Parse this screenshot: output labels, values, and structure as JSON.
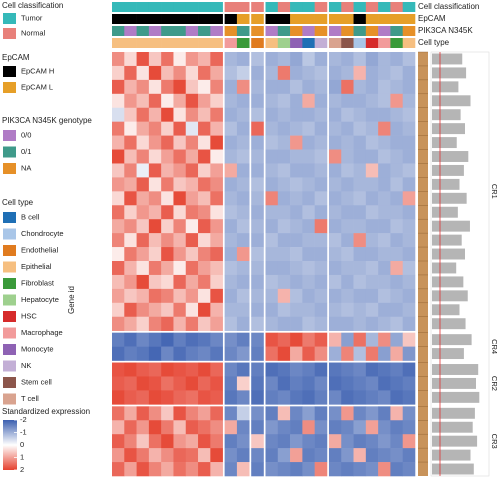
{
  "chart_data": {
    "type": "heatmap",
    "y_label": "Gene id",
    "colorbar": {
      "title": "Standardized expression",
      "lim": [
        -2,
        2
      ],
      "ticks": [
        -2,
        -1,
        0,
        1,
        2
      ],
      "colors": [
        "#3b5fb0",
        "#ffffff",
        "#e5412f"
      ]
    },
    "column_annotations": [
      {
        "label": "Cell classification",
        "legend_title": "Cell classification",
        "levels": [
          {
            "name": "Tumor",
            "color": "#35b9b9"
          },
          {
            "name": "Normal",
            "color": "#e8807a"
          }
        ],
        "values": [
          "Tumor",
          "Tumor",
          "Tumor",
          "Tumor",
          "Tumor",
          "Tumor",
          "Tumor",
          "Tumor",
          "Tumor",
          "Normal",
          "Normal",
          "Normal",
          "Tumor",
          "Normal",
          "Tumor",
          "Tumor",
          "Normal",
          "Tumor",
          "Normal",
          "Tumor",
          "Normal",
          "Tumor",
          "Normal",
          "Tumor"
        ]
      },
      {
        "label": "EpCAM",
        "legend_title": "EpCAM",
        "levels": [
          {
            "name": "EpCAM H",
            "color": "#000000"
          },
          {
            "name": "EpCAM L",
            "color": "#e69f28"
          }
        ],
        "values": [
          "EpCAM H",
          "EpCAM H",
          "EpCAM H",
          "EpCAM H",
          "EpCAM H",
          "EpCAM H",
          "EpCAM H",
          "EpCAM H",
          "EpCAM H",
          "EpCAM H",
          "EpCAM L",
          "EpCAM L",
          "EpCAM H",
          "EpCAM H",
          "EpCAM L",
          "EpCAM L",
          "EpCAM L",
          "EpCAM L",
          "EpCAM L",
          "EpCAM H",
          "EpCAM L",
          "EpCAM L",
          "EpCAM L",
          "EpCAM L"
        ]
      },
      {
        "label": "PIK3CA N345K",
        "legend_title": "PIK3CA N345K genotype",
        "levels": [
          {
            "name": "0/0",
            "color": "#b07cc6"
          },
          {
            "name": "0/1",
            "color": "#3f9a8a"
          },
          {
            "name": "NA",
            "color": "#e69028"
          }
        ],
        "values": [
          "0/1",
          "0/0",
          "0/1",
          "0/0",
          "0/1",
          "0/1",
          "0/0",
          "0/1",
          "0/0",
          "NA",
          "0/1",
          "NA",
          "0/0",
          "0/1",
          "NA",
          "0/0",
          "NA",
          "0/0",
          "NA",
          "0/1",
          "NA",
          "0/0",
          "0/1",
          "NA"
        ]
      },
      {
        "label": "Cell type",
        "legend_title": "Cell type",
        "levels": [
          {
            "name": "B cell",
            "color": "#1f6fb5"
          },
          {
            "name": "Chondrocyte",
            "color": "#a9c6e8"
          },
          {
            "name": "Endothelial",
            "color": "#e07b1f"
          },
          {
            "name": "Epithelial",
            "color": "#f6bf80"
          },
          {
            "name": "Fibroblast",
            "color": "#3a9a3a"
          },
          {
            "name": "Hepatocyte",
            "color": "#9ed08e"
          },
          {
            "name": "HSC",
            "color": "#d62b2b"
          },
          {
            "name": "Macrophage",
            "color": "#f29b9b"
          },
          {
            "name": "Monocyte",
            "color": "#8e62b4"
          },
          {
            "name": "NK",
            "color": "#c3afd6"
          },
          {
            "name": "Stem cell",
            "color": "#8c564b"
          },
          {
            "name": "T cell",
            "color": "#d9a38f"
          }
        ],
        "values": [
          "Epithelial",
          "Epithelial",
          "Epithelial",
          "Epithelial",
          "Epithelial",
          "Epithelial",
          "Epithelial",
          "Epithelial",
          "Epithelial",
          "Macrophage",
          "Fibroblast",
          "Endothelial",
          "Epithelial",
          "Hepatocyte",
          "Monocyte",
          "B cell",
          "NK",
          "T cell",
          "Stem cell",
          "Chondrocyte",
          "HSC",
          "Macrophage",
          "Fibroblast",
          "Epithelial"
        ]
      }
    ],
    "row_clusters": [
      {
        "name": "CR1",
        "rows": [
          [
            1.2,
            0.4,
            1.8,
            0.6,
            1.5,
            0.2,
            1.1,
            0.8,
            1.6,
            -0.9,
            -1.0,
            -0.8,
            -1.0,
            -0.9,
            -1.1,
            -0.7,
            -1.0,
            -0.9,
            -1.0,
            -0.8,
            -1.1,
            -0.9,
            -1.0,
            -0.8
          ],
          [
            0.5,
            1.6,
            0.3,
            1.9,
            0.7,
            1.2,
            0.4,
            1.5,
            0.9,
            -0.8,
            -0.6,
            -1.0,
            -0.9,
            1.4,
            -1.0,
            -0.9,
            -0.8,
            -1.0,
            -0.9,
            0.8,
            -1.0,
            -0.9,
            -0.8,
            -1.0
          ],
          [
            1.7,
            0.8,
            1.2,
            0.3,
            1.4,
            1.9,
            0.6,
            0.2,
            1.3,
            -1.0,
            1.2,
            -0.9,
            -1.0,
            -1.0,
            -0.8,
            -1.0,
            -0.9,
            -1.1,
            1.5,
            -0.9,
            -1.0,
            -0.8,
            -0.9,
            -1.0
          ],
          [
            0.3,
            1.1,
            0.7,
            1.6,
            0.2,
            0.9,
            1.8,
            1.0,
            0.5,
            -0.9,
            -1.0,
            -1.0,
            -0.9,
            -0.8,
            -1.0,
            0.9,
            -1.0,
            -0.9,
            -1.0,
            -1.0,
            -0.9,
            -0.8,
            1.1,
            -0.9
          ],
          [
            -0.4,
            0.6,
            1.5,
            0.8,
            1.9,
            0.3,
            1.2,
            0.7,
            1.4,
            -1.0,
            -0.9,
            -0.8,
            -1.0,
            -0.9,
            -1.0,
            -1.0,
            -0.9,
            -1.0,
            -0.8,
            -0.9,
            -1.0,
            -1.0,
            -0.9,
            -0.8
          ],
          [
            1.4,
            0.2,
            0.9,
            1.3,
            0.5,
            1.7,
            -0.3,
            1.6,
            0.8,
            -0.8,
            -1.0,
            1.6,
            -0.9,
            -1.0,
            -0.9,
            -0.8,
            -1.0,
            -0.9,
            -1.0,
            -0.8,
            -0.9,
            1.3,
            -1.0,
            -0.9
          ],
          [
            0.8,
            1.5,
            0.4,
            1.1,
            1.6,
            0.6,
            1.3,
            0.3,
            1.9,
            -1.0,
            -0.9,
            -1.0,
            -0.8,
            -0.9,
            1.1,
            -1.0,
            -0.9,
            -1.0,
            -0.9,
            -1.0,
            -0.8,
            -0.9,
            -1.0,
            -1.0
          ],
          [
            1.9,
            0.7,
            1.3,
            0.4,
            1.0,
            1.5,
            0.9,
            1.8,
            0.2,
            -0.9,
            -0.8,
            -0.9,
            -1.0,
            -1.0,
            -0.9,
            -0.9,
            -0.8,
            1.2,
            -0.9,
            -1.0,
            -1.0,
            -0.8,
            -0.9,
            -1.0
          ],
          [
            0.6,
            1.3,
            -0.2,
            1.7,
            0.8,
            1.1,
            1.6,
            0.5,
            1.0,
            0.9,
            -1.0,
            -1.0,
            -0.9,
            -0.8,
            -1.0,
            -1.0,
            -0.9,
            -1.0,
            -0.8,
            -0.9,
            0.7,
            -1.0,
            -0.9,
            -0.8
          ],
          [
            1.1,
            0.9,
            1.7,
            0.3,
            1.4,
            0.6,
            0.8,
            1.5,
            1.2,
            -1.0,
            -0.9,
            -0.8,
            -1.0,
            -0.9,
            -0.8,
            -0.9,
            -1.0,
            -0.9,
            -1.0,
            -0.9,
            -0.9,
            -1.0,
            -0.8,
            -1.0
          ],
          [
            0.4,
            1.8,
            0.9,
            1.2,
            0.3,
            1.9,
            1.0,
            0.7,
            1.5,
            -0.9,
            -1.0,
            -0.9,
            1.3,
            -1.0,
            -0.9,
            -1.0,
            -0.8,
            -1.0,
            -0.9,
            -0.8,
            -1.0,
            -0.9,
            -1.0,
            1.0
          ],
          [
            1.5,
            0.5,
            1.1,
            0.8,
            1.7,
            0.4,
            1.4,
            1.2,
            0.3,
            -0.8,
            -0.9,
            -1.0,
            -0.9,
            -0.9,
            -1.0,
            -0.8,
            -1.0,
            -0.9,
            -1.0,
            -1.0,
            -0.8,
            -0.9,
            -0.9,
            -1.0
          ],
          [
            0.9,
            1.2,
            0.6,
            1.9,
            0.5,
            1.3,
            0.2,
            1.7,
            1.1,
            -1.0,
            -0.8,
            -0.9,
            -1.0,
            -0.8,
            -0.9,
            -1.0,
            1.4,
            -1.0,
            -0.9,
            -0.9,
            -1.0,
            -1.0,
            -0.8,
            -0.9
          ],
          [
            1.3,
            0.3,
            1.6,
            0.7,
            1.2,
            0.8,
            1.7,
            0.4,
            0.9,
            -0.9,
            -1.0,
            -1.0,
            -0.8,
            -1.0,
            -1.0,
            -0.9,
            -0.9,
            -0.8,
            -1.0,
            1.2,
            -0.9,
            -0.8,
            -1.0,
            -0.9
          ],
          [
            0.2,
            1.4,
            1.0,
            0.5,
            1.8,
            1.1,
            0.6,
            1.3,
            1.6,
            -1.0,
            1.1,
            -0.8,
            -0.9,
            -0.9,
            -0.8,
            -1.0,
            -1.0,
            -0.9,
            -0.8,
            -1.0,
            -1.0,
            -0.9,
            -0.9,
            -1.0
          ],
          [
            1.6,
            0.8,
            0.3,
            1.4,
            0.9,
            0.2,
            1.5,
            1.0,
            0.7,
            -0.8,
            -0.9,
            -0.9,
            -1.0,
            -1.0,
            -0.9,
            -0.8,
            -0.9,
            -1.0,
            -0.9,
            -0.9,
            -0.8,
            -1.0,
            0.9,
            -0.8
          ],
          [
            0.7,
            1.1,
            1.9,
            0.6,
            0.4,
            1.6,
            0.9,
            1.4,
            0.5,
            -0.9,
            -1.0,
            -1.0,
            -0.8,
            -0.9,
            -1.0,
            -0.9,
            -1.0,
            -0.8,
            -1.0,
            -0.8,
            -0.9,
            -0.9,
            -1.0,
            -0.9
          ],
          [
            1.0,
            0.6,
            0.8,
            1.5,
            1.3,
            0.7,
            1.1,
            0.3,
            1.8,
            -1.0,
            -0.8,
            -0.9,
            -0.9,
            0.8,
            -0.8,
            -1.0,
            -0.9,
            -1.0,
            -0.9,
            -1.0,
            -1.0,
            -0.8,
            -0.9,
            -1.0
          ],
          [
            0.5,
            1.7,
            1.2,
            0.9,
            0.6,
            1.4,
            0.3,
            1.9,
            0.8,
            -0.9,
            -0.9,
            -1.0,
            -1.0,
            -0.8,
            -0.9,
            -0.9,
            -1.0,
            -0.9,
            -0.8,
            -0.9,
            -0.8,
            -1.0,
            -1.0,
            -0.9
          ],
          [
            1.2,
            0.9,
            0.5,
            1.3,
            1.6,
            0.8,
            1.4,
            0.6,
            1.0,
            -0.8,
            -1.0,
            -0.8,
            -0.9,
            -1.0,
            -1.0,
            -0.8,
            -0.9,
            -1.0,
            -1.0,
            -0.9,
            -1.0,
            -0.9,
            -0.8,
            -1.0
          ]
        ]
      },
      {
        "name": "CR4",
        "rows": [
          [
            -1.6,
            -1.8,
            -1.5,
            -1.7,
            -1.9,
            -1.6,
            -1.8,
            -1.7,
            -1.5,
            -1.4,
            -1.6,
            -1.5,
            1.8,
            1.6,
            1.9,
            1.4,
            1.7,
            0.8,
            -1.2,
            1.5,
            -0.9,
            1.2,
            -1.1,
            0.6
          ],
          [
            -1.8,
            -1.6,
            -1.7,
            -1.9,
            -1.5,
            -1.8,
            -1.6,
            -1.5,
            -1.7,
            -1.5,
            -1.3,
            -1.6,
            1.5,
            1.9,
            0.9,
            1.7,
            1.2,
            -1.0,
            1.3,
            -0.8,
            1.4,
            -1.2,
            0.9,
            -1.3
          ]
        ]
      },
      {
        "name": "CR2",
        "rows": [
          [
            1.8,
            1.9,
            1.7,
            1.6,
            1.9,
            1.8,
            1.7,
            1.9,
            1.6,
            -1.5,
            -1.7,
            -1.6,
            -1.8,
            -1.7,
            -1.5,
            -1.6,
            -1.8,
            -1.7,
            -1.6,
            -1.5,
            -1.8,
            -1.7,
            -1.6,
            -1.8
          ],
          [
            1.7,
            1.6,
            1.9,
            1.8,
            1.5,
            1.7,
            1.9,
            1.6,
            1.8,
            -1.6,
            0.5,
            -1.7,
            -1.5,
            -1.8,
            -1.6,
            -1.7,
            -1.5,
            -1.8,
            -1.7,
            -1.6,
            -1.5,
            -1.8,
            -1.7,
            -1.6
          ],
          [
            1.9,
            1.7,
            1.6,
            1.9,
            1.8,
            1.6,
            1.5,
            1.8,
            1.7,
            -1.7,
            -1.5,
            -1.8,
            -1.6,
            -1.5,
            -1.7,
            -1.8,
            -1.6,
            -1.5,
            -1.8,
            -1.7,
            -1.6,
            -1.5,
            -1.8,
            -1.7
          ]
        ]
      },
      {
        "name": "CR3",
        "rows": [
          [
            1.5,
            0.9,
            1.7,
            1.2,
            0.6,
            1.8,
            1.3,
            1.0,
            1.6,
            -1.5,
            -0.6,
            -1.4,
            -1.6,
            0.7,
            -1.5,
            -1.2,
            -1.6,
            -1.4,
            1.1,
            -1.5,
            -1.3,
            -1.6,
            0.8,
            -1.4
          ],
          [
            0.8,
            1.6,
            1.1,
            1.9,
            1.4,
            0.7,
            1.7,
            1.5,
            1.2,
            0.9,
            -1.5,
            -1.6,
            -1.3,
            -1.5,
            -1.6,
            1.2,
            -1.4,
            -1.6,
            -1.5,
            -1.2,
            1.0,
            -1.4,
            -1.6,
            -1.5
          ],
          [
            1.7,
            1.3,
            0.6,
            1.5,
            1.9,
            1.1,
            0.9,
            1.8,
            1.4,
            -1.6,
            -1.4,
            0.6,
            -1.5,
            -1.6,
            -1.3,
            -1.5,
            -1.6,
            0.9,
            -1.4,
            -1.6,
            -1.5,
            -1.3,
            -1.5,
            1.1
          ],
          [
            1.1,
            1.8,
            1.4,
            0.8,
            1.2,
            1.6,
            1.5,
            0.7,
            1.9,
            -1.4,
            -1.6,
            -1.5,
            -1.6,
            -1.2,
            1.0,
            -1.6,
            -1.5,
            -1.6,
            -1.3,
            0.8,
            -1.6,
            -1.5,
            -1.4,
            -1.6
          ],
          [
            1.6,
            1.0,
            1.8,
            1.3,
            0.9,
            1.5,
            1.2,
            1.7,
            0.8,
            -1.5,
            0.7,
            -1.6,
            -1.4,
            -1.5,
            -1.6,
            -1.4,
            1.3,
            -1.5,
            -1.6,
            -1.5,
            -1.4,
            1.2,
            -1.6,
            -1.5
          ]
        ]
      }
    ],
    "row_bars": {
      "lim": [
        0,
        1
      ],
      "color": "#b5b5b5",
      "values": [
        0.55,
        0.62,
        0.48,
        0.7,
        0.52,
        0.6,
        0.45,
        0.66,
        0.58,
        0.5,
        0.63,
        0.47,
        0.69,
        0.54,
        0.6,
        0.44,
        0.57,
        0.65,
        0.5,
        0.61,
        0.72,
        0.58,
        0.84,
        0.8,
        0.86,
        0.78,
        0.74,
        0.82,
        0.7,
        0.76
      ]
    }
  }
}
